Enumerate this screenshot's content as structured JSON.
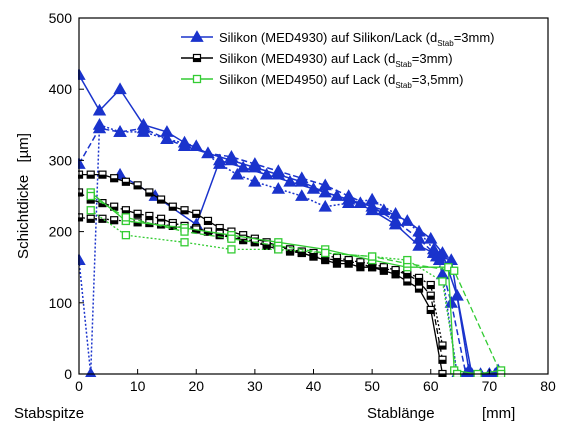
{
  "chart_data": {
    "type": "line",
    "title": "",
    "ylabel": "Schichtdicke",
    "ylabel_unit": "[µm]",
    "xlabel_left": "Stabspitze",
    "xlabel_right": "Stablänge",
    "xlabel_unit": "[mm]",
    "xlim": [
      0,
      80
    ],
    "ylim": [
      0,
      500
    ],
    "x_ticks": [
      0,
      10,
      20,
      30,
      40,
      50,
      60,
      70,
      80
    ],
    "y_ticks": [
      0,
      100,
      200,
      300,
      400,
      500
    ],
    "grid": false,
    "legend_position": "top-right",
    "series": [
      {
        "name": "Silikon (MED4930) auf Silikon/Lack (d_Stab=3mm)",
        "legend": {
          "prefix": "Silikon (MED4930) auf Silikon/Lack (d",
          "sub": "Stab",
          "suffix": "=3mm)"
        },
        "color": "#1a33cc",
        "marker": "triangle-filled",
        "lines": [
          {
            "x": [
              0,
              3.5,
              7,
              11,
              15,
              18,
              22,
              26,
              30,
              34,
              38,
              42,
              46,
              50,
              54,
              58,
              60.5,
              61.5,
              63.5,
              66.5,
              70,
              71.5
            ],
            "y": [
              420,
              370,
              400,
              350,
              340,
              325,
              310,
              300,
              290,
              280,
              270,
              255,
              245,
              230,
              210,
              180,
              170,
              165,
              160,
              5,
              0,
              5
            ]
          },
          {
            "x": [
              0,
              3.5,
              7,
              11,
              15,
              18,
              22,
              26,
              30,
              34,
              38,
              42,
              46,
              50,
              54,
              58,
              60.5,
              61.5,
              63.5,
              66,
              68.5,
              71
            ],
            "y": [
              295,
              345,
              340,
              345,
              330,
              320,
              310,
              305,
              295,
              285,
              275,
              265,
              250,
              235,
              215,
              190,
              170,
              160,
              100,
              0,
              0,
              0
            ]
          },
          {
            "x": [
              0,
              2,
              3.5,
              7,
              11,
              15,
              20,
              24,
              27,
              30,
              34,
              38,
              42,
              46,
              50,
              54,
              58,
              60.5,
              61,
              62,
              64.5,
              67,
              70
            ],
            "y": [
              160,
              0,
              350,
              340,
              340,
              330,
              320,
              295,
              280,
              270,
              260,
              250,
              235,
              240,
              245,
              225,
              200,
              175,
              165,
              140,
              0,
              0,
              0
            ]
          },
          {
            "x": [
              7,
              13,
              20,
              24,
              28,
              32,
              36,
              40,
              44,
              48,
              52,
              56,
              60,
              62,
              64.5,
              67,
              70
            ],
            "y": [
              280,
              250,
              210,
              300,
              290,
              280,
              270,
              260,
              250,
              240,
              230,
              215,
              190,
              170,
              110,
              0,
              0
            ]
          }
        ]
      },
      {
        "name": "Silikon (MED4930) auf Lack (d_Stab=3mm)",
        "legend": {
          "prefix": "Silikon (MED4930) auf Lack (d",
          "sub": "Stab",
          "suffix": "=3mm)"
        },
        "color": "#000000",
        "marker": "square-halffilled",
        "lines": [
          {
            "x": [
              0,
              2,
              4,
              6,
              8,
              10,
              12,
              14,
              16,
              18,
              20,
              22,
              24,
              26,
              28,
              30,
              32,
              34,
              36,
              38,
              40,
              42,
              44,
              46,
              48,
              50,
              52,
              54,
              56,
              58,
              60,
              62
            ],
            "y": [
              280,
              280,
              280,
              275,
              270,
              265,
              255,
              245,
              235,
              230,
              225,
              215,
              205,
              200,
              195,
              190,
              185,
              180,
              175,
              170,
              165,
              160,
              155,
              155,
              150,
              150,
              145,
              140,
              130,
              120,
              90,
              0
            ]
          },
          {
            "x": [
              0,
              2,
              4,
              6,
              8,
              10,
              12,
              14,
              16,
              18,
              20,
              22,
              24,
              26,
              28,
              30,
              32,
              34,
              36,
              38,
              40,
              42,
              44,
              46,
              48,
              50,
              52,
              54,
              56,
              58,
              60,
              62
            ],
            "y": [
              255,
              245,
              240,
              235,
              230,
              225,
              222,
              218,
              212,
              208,
              205,
              200,
              195,
              192,
              188,
              185,
              180,
              175,
              172,
              170,
              165,
              162,
              160,
              158,
              155,
              150,
              148,
              145,
              140,
              130,
              110,
              20
            ]
          },
          {
            "x": [
              0,
              2,
              4,
              6,
              8,
              10,
              12,
              14,
              16,
              18,
              20,
              22,
              24,
              26,
              28,
              30,
              32,
              34,
              36,
              38,
              40,
              42,
              44,
              46,
              48,
              50,
              52,
              54,
              56,
              58,
              60,
              62
            ],
            "y": [
              220,
              218,
              218,
              216,
              215,
              213,
              212,
              210,
              208,
              205,
              203,
              200,
              197,
              193,
              190,
              186,
              182,
              178,
              175,
              172,
              170,
              167,
              163,
              160,
              157,
              155,
              150,
              146,
              142,
              135,
              125,
              40
            ]
          }
        ]
      },
      {
        "name": "Silikon (MED4950) auf Lack (d_Stab=3,5mm)",
        "legend": {
          "prefix": "Silikon (MED4950) auf Lack (d",
          "sub": "Stab",
          "suffix": "=3,5mm)"
        },
        "color": "#33cc33",
        "marker": "square-open",
        "lines": [
          {
            "x": [
              2,
              8,
              18,
              26,
              34,
              42,
              50,
              56,
              63,
              64,
              68,
              72
            ],
            "y": [
              255,
              215,
              205,
              195,
              185,
              175,
              160,
              150,
              150,
              5,
              0,
              5
            ]
          },
          {
            "x": [
              2,
              8,
              18,
              26,
              34,
              42,
              50,
              56,
              64,
              72
            ],
            "y": [
              250,
              220,
              200,
              190,
              180,
              170,
              165,
              155,
              145,
              0
            ]
          },
          {
            "x": [
              2,
              8,
              18,
              26,
              34,
              42,
              50,
              56,
              62,
              64.5
            ],
            "y": [
              230,
              195,
              185,
              175,
              175,
              170,
              165,
              160,
              130,
              0
            ]
          }
        ]
      }
    ]
  }
}
